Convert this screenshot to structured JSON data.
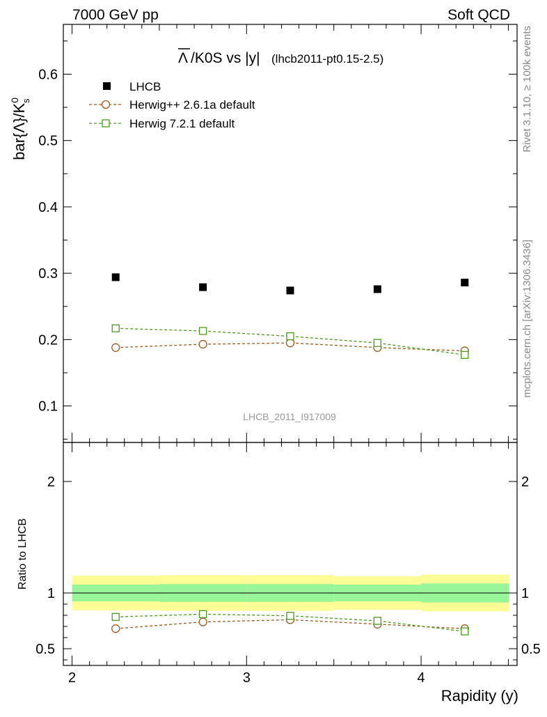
{
  "header": {
    "left": "7000 GeV pp",
    "right": "Soft QCD"
  },
  "main_plot": {
    "title_overbar": "Λ",
    "title_main": "/K0S vs |y|",
    "title_sub": "(lhcb2011-pt0.15-2.5)",
    "ylabel_main": "bar{Λ}/K",
    "ylabel_sup": "0",
    "ylabel_sub": "s",
    "watermark": "LHCB_2011_I917009"
  },
  "ratio_plot": {
    "ylabel": "Ratio to LHCB"
  },
  "side_labels": {
    "rivet": "Rivet 3.1.10, ≥ 100k events",
    "mcplots": "mcplots.cern.ch [arXiv:1306.3436]"
  },
  "xlabel": "Rapidity (y)",
  "legend": {
    "items": [
      {
        "label": "LHCB"
      },
      {
        "label": "Herwig++ 2.6.1a default"
      },
      {
        "label": "Herwig 7.2.1 default"
      }
    ]
  },
  "colors": {
    "data": "#000000",
    "herwigpp": "#a0581a",
    "herwig7": "#4a9a1a",
    "band_inner": "#98f598",
    "band_outer": "#fdfd96"
  },
  "chart_data": [
    {
      "type": "scatter",
      "name": "main",
      "xlim": [
        1.95,
        4.55
      ],
      "ylim": [
        0.045,
        0.675
      ],
      "xticks": [
        2,
        3,
        4
      ],
      "yticks": [
        0.1,
        0.2,
        0.3,
        0.4,
        0.5,
        0.6
      ],
      "ytick_labels": [
        "0.1",
        "0.2",
        "0.3",
        "0.4",
        "0.5",
        "0.6"
      ],
      "series": [
        {
          "name": "LHCB",
          "x": [
            2.25,
            2.75,
            3.25,
            3.75,
            4.25
          ],
          "y": [
            0.294,
            0.279,
            0.274,
            0.276,
            0.286
          ]
        },
        {
          "name": "Herwig++ 2.6.1a default",
          "x": [
            2.25,
            2.75,
            3.25,
            3.75,
            4.25
          ],
          "y": [
            0.188,
            0.193,
            0.195,
            0.188,
            0.183
          ]
        },
        {
          "name": "Herwig 7.2.1 default",
          "x": [
            2.25,
            2.75,
            3.25,
            3.75,
            4.25
          ],
          "y": [
            0.217,
            0.213,
            0.205,
            0.195,
            0.177
          ]
        }
      ]
    },
    {
      "type": "line",
      "name": "ratio",
      "xlim": [
        1.95,
        4.55
      ],
      "ylim": [
        0.35,
        2.35
      ],
      "xticks": [
        2,
        3,
        4
      ],
      "xtick_labels": [
        "2",
        "3",
        "4"
      ],
      "yticks": [
        0.5,
        1,
        2
      ],
      "ytick_labels": [
        "0.5",
        "1",
        "2"
      ],
      "band_bins": [
        {
          "x0": 2.0,
          "x1": 2.5,
          "inner": [
            0.925,
            1.075
          ],
          "outer": [
            0.845,
            1.155
          ]
        },
        {
          "x0": 2.5,
          "x1": 3.0,
          "inner": [
            0.92,
            1.08
          ],
          "outer": [
            0.84,
            1.16
          ]
        },
        {
          "x0": 3.0,
          "x1": 3.5,
          "inner": [
            0.92,
            1.08
          ],
          "outer": [
            0.84,
            1.16
          ]
        },
        {
          "x0": 3.5,
          "x1": 4.0,
          "inner": [
            0.925,
            1.075
          ],
          "outer": [
            0.85,
            1.15
          ]
        },
        {
          "x0": 4.0,
          "x1": 4.5,
          "inner": [
            0.915,
            1.085
          ],
          "outer": [
            0.835,
            1.165
          ]
        }
      ],
      "series": [
        {
          "name": "Herwig++ 2.6.1a default",
          "x": [
            2.25,
            2.75,
            3.25,
            3.75,
            4.25
          ],
          "y": [
            0.68,
            0.74,
            0.76,
            0.72,
            0.68
          ]
        },
        {
          "name": "Herwig 7.2.1 default",
          "x": [
            2.25,
            2.75,
            3.25,
            3.75,
            4.25
          ],
          "y": [
            0.785,
            0.81,
            0.795,
            0.75,
            0.655
          ]
        }
      ]
    }
  ]
}
